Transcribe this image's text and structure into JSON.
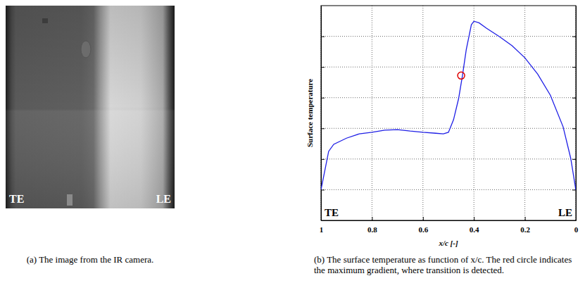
{
  "chart_data": {
    "type": "line",
    "y_label": "Surface temperature",
    "x_label": "x/c [-]",
    "annotations": [
      "TE",
      "LE"
    ],
    "caption": "(b) The surface temperature as function of x/c. The red circle indicates the maximum gradient, where transition is detected.",
    "xlim": [
      1,
      0
    ],
    "xticks": [
      1,
      0.8,
      0.6,
      0.4,
      0.2,
      0
    ],
    "ylim": [
      0,
      7
    ],
    "yticks": [
      1,
      2,
      3,
      4,
      5,
      6
    ],
    "grid": true,
    "tick_labels": "x",
    "series": [
      {
        "type": "line",
        "color": "#1f1fe6",
        "line_style": "solid",
        "x": [
          1,
          0.97,
          0.95,
          0.9,
          0.85,
          0.8,
          0.75,
          0.7,
          0.65,
          0.6,
          0.55,
          0.52,
          0.5,
          0.48,
          0.46,
          0.445,
          0.43,
          0.41,
          0.4,
          0.38,
          0.35,
          0.3,
          0.25,
          0.2,
          0.15,
          0.1,
          0.05,
          0.02,
          0
        ],
        "values": [
          1.0,
          2.25,
          2.48,
          2.68,
          2.82,
          2.87,
          2.94,
          2.96,
          2.91,
          2.87,
          2.84,
          2.82,
          2.87,
          3.28,
          3.97,
          4.72,
          5.57,
          6.38,
          6.49,
          6.44,
          6.26,
          5.99,
          5.69,
          5.3,
          4.77,
          4.08,
          3.05,
          2.02,
          0.99
        ]
      },
      {
        "type": "scatter",
        "color": "#e00000",
        "marker": "circle",
        "x": [
          0.45
        ],
        "values": [
          4.72
        ]
      }
    ]
  },
  "image": {
    "labels": [
      "TE",
      "LE"
    ],
    "caption": "(a) The image from the IR camera."
  }
}
